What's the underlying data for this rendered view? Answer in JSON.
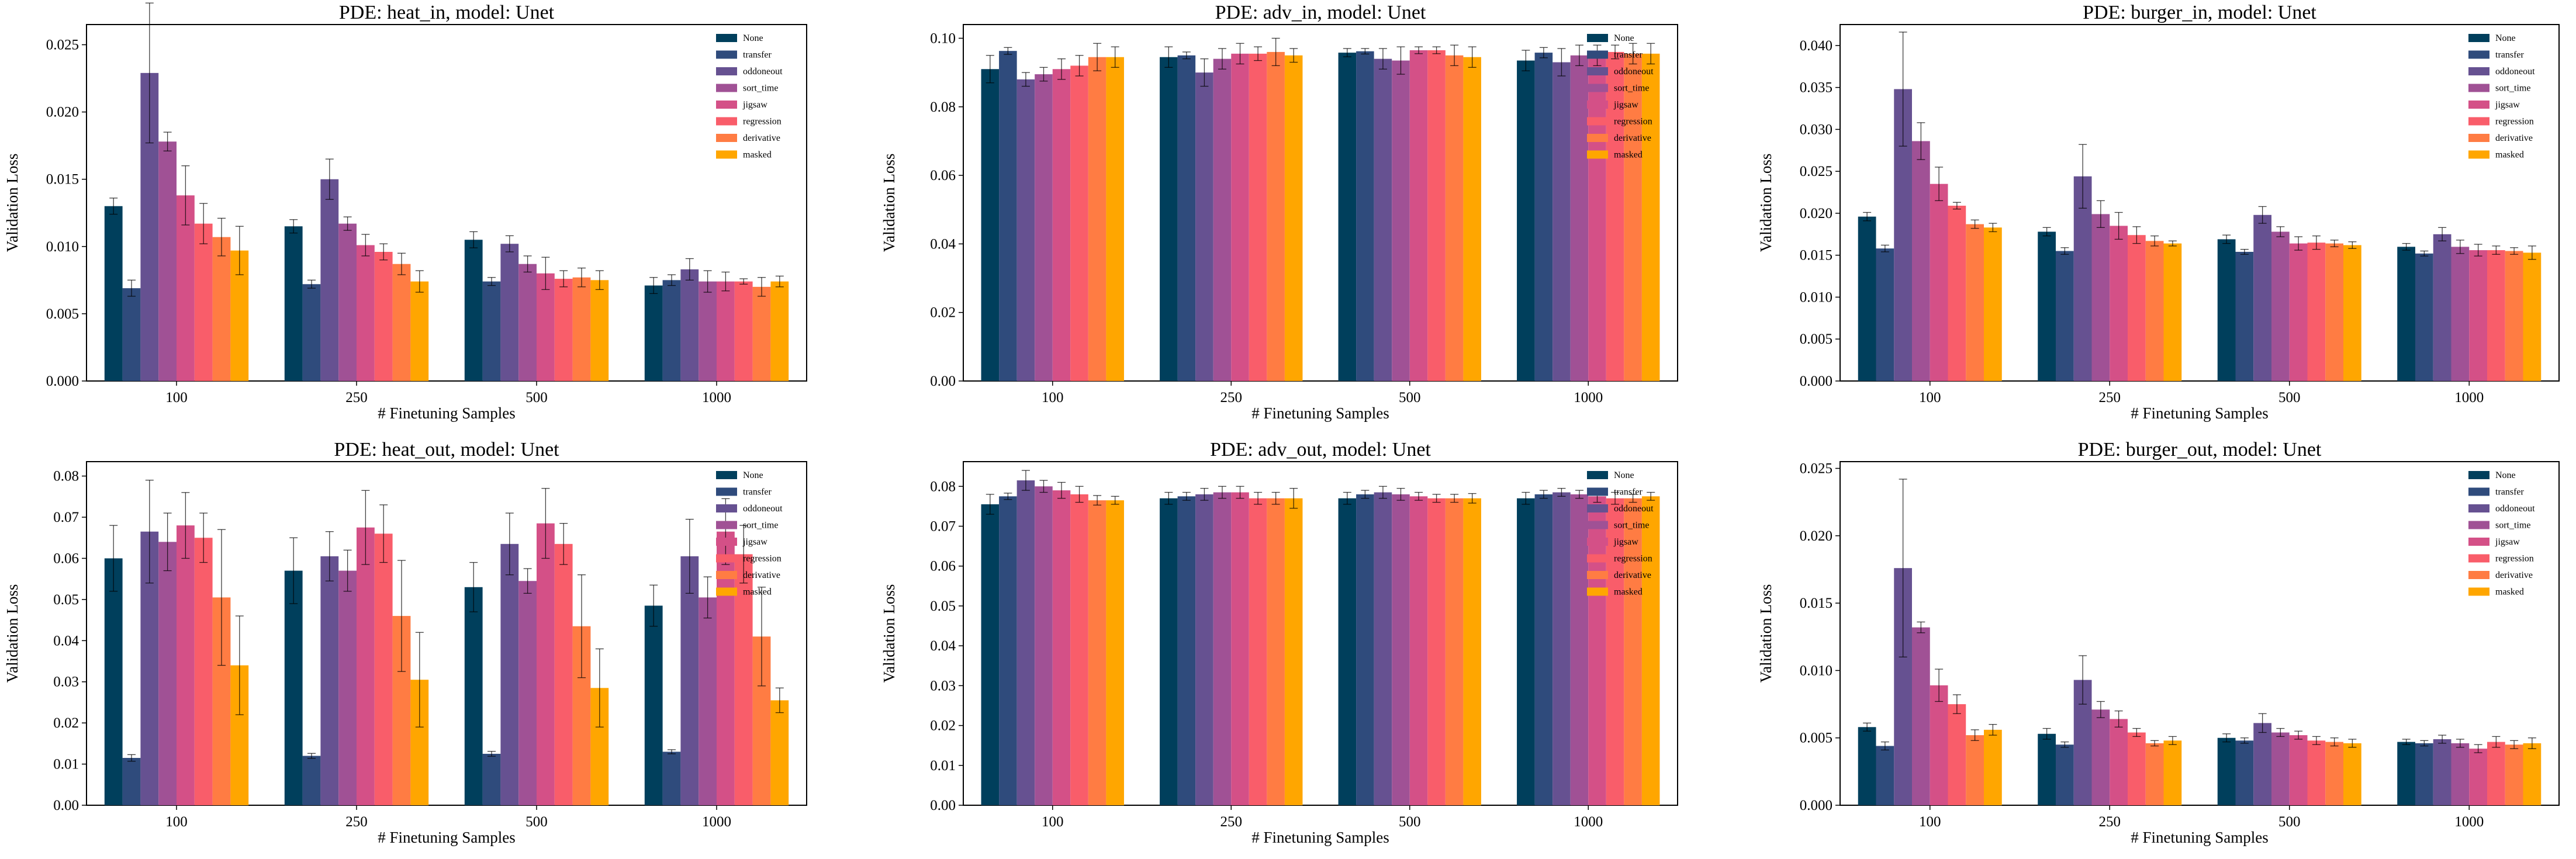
{
  "colors": {
    "None": "#003f5c",
    "transfer": "#2f4b7c",
    "oddoneout": "#665191",
    "sort_time": "#a05195",
    "jigsaw": "#d45087",
    "regression": "#f95d6a",
    "derivative": "#ff7c43",
    "masked": "#ffa600"
  },
  "chart_data": [
    {
      "type": "bar",
      "title": "PDE: heat_in, model: Unet",
      "xlabel": "# Finetuning Samples",
      "ylabel": "Validation Loss",
      "categories": [
        "100",
        "250",
        "500",
        "1000"
      ],
      "ylim": [
        0,
        0.0265
      ],
      "yticks": [
        "0.000",
        "0.005",
        "0.010",
        "0.015",
        "0.020",
        "0.025"
      ],
      "ytick_values": [
        0,
        0.005,
        0.01,
        0.015,
        0.02,
        0.025
      ],
      "series": [
        {
          "name": "None",
          "values": [
            0.013,
            0.0115,
            0.0105,
            0.0071
          ],
          "errors": [
            0.0006,
            0.0005,
            0.0006,
            0.0006
          ]
        },
        {
          "name": "transfer",
          "values": [
            0.0069,
            0.0072,
            0.0074,
            0.0075
          ],
          "errors": [
            0.0006,
            0.0003,
            0.0003,
            0.0004
          ]
        },
        {
          "name": "oddoneout",
          "values": [
            0.0229,
            0.015,
            0.0102,
            0.0083
          ],
          "errors": [
            0.0052,
            0.0015,
            0.0006,
            0.0008
          ]
        },
        {
          "name": "sort_time",
          "values": [
            0.0178,
            0.0117,
            0.0087,
            0.0074
          ],
          "errors": [
            0.0007,
            0.0005,
            0.0006,
            0.0008
          ]
        },
        {
          "name": "jigsaw",
          "values": [
            0.0138,
            0.0101,
            0.008,
            0.0074
          ],
          "errors": [
            0.0022,
            0.0008,
            0.0012,
            0.0007
          ]
        },
        {
          "name": "regression",
          "values": [
            0.0117,
            0.0096,
            0.0076,
            0.0074
          ],
          "errors": [
            0.0015,
            0.0006,
            0.0006,
            0.0002
          ]
        },
        {
          "name": "derivative",
          "values": [
            0.0107,
            0.0087,
            0.0077,
            0.007
          ],
          "errors": [
            0.0014,
            0.0008,
            0.0007,
            0.0007
          ]
        },
        {
          "name": "masked",
          "values": [
            0.0097,
            0.0074,
            0.0075,
            0.0074
          ],
          "errors": [
            0.0018,
            0.0008,
            0.0007,
            0.0004
          ]
        }
      ]
    },
    {
      "type": "bar",
      "title": "PDE: adv_in, model: Unet",
      "xlabel": "# Finetuning Samples",
      "ylabel": "Validation Loss",
      "categories": [
        "100",
        "250",
        "500",
        "1000"
      ],
      "ylim": [
        0,
        0.104
      ],
      "yticks": [
        "0.00",
        "0.02",
        "0.04",
        "0.06",
        "0.08",
        "0.10"
      ],
      "ytick_values": [
        0,
        0.02,
        0.04,
        0.06,
        0.08,
        0.1
      ],
      "series": [
        {
          "name": "None",
          "values": [
            0.091,
            0.0945,
            0.0958,
            0.0935
          ],
          "errors": [
            0.004,
            0.003,
            0.0012,
            0.003
          ]
        },
        {
          "name": "transfer",
          "values": [
            0.0963,
            0.095,
            0.0962,
            0.0958
          ],
          "errors": [
            0.001,
            0.001,
            0.0008,
            0.0015
          ]
        },
        {
          "name": "oddoneout",
          "values": [
            0.088,
            0.09,
            0.094,
            0.093
          ],
          "errors": [
            0.002,
            0.004,
            0.003,
            0.004
          ]
        },
        {
          "name": "sort_time",
          "values": [
            0.0895,
            0.094,
            0.0935,
            0.095
          ],
          "errors": [
            0.002,
            0.003,
            0.004,
            0.003
          ]
        },
        {
          "name": "jigsaw",
          "values": [
            0.091,
            0.0955,
            0.0965,
            0.095
          ],
          "errors": [
            0.003,
            0.003,
            0.001,
            0.003
          ]
        },
        {
          "name": "regression",
          "values": [
            0.092,
            0.0955,
            0.0965,
            0.096
          ],
          "errors": [
            0.003,
            0.002,
            0.001,
            0.002
          ]
        },
        {
          "name": "derivative",
          "values": [
            0.0945,
            0.096,
            0.095,
            0.0955
          ],
          "errors": [
            0.004,
            0.004,
            0.003,
            0.003
          ]
        },
        {
          "name": "masked",
          "values": [
            0.0945,
            0.095,
            0.0945,
            0.0955
          ],
          "errors": [
            0.003,
            0.002,
            0.003,
            0.003
          ]
        }
      ]
    },
    {
      "type": "bar",
      "title": "PDE: burger_in, model: Unet",
      "xlabel": "# Finetuning Samples",
      "ylabel": "Validation Loss",
      "categories": [
        "100",
        "250",
        "500",
        "1000"
      ],
      "ylim": [
        0,
        0.0425
      ],
      "yticks": [
        "0.000",
        "0.005",
        "0.010",
        "0.015",
        "0.020",
        "0.025",
        "0.030",
        "0.035",
        "0.040"
      ],
      "ytick_values": [
        0,
        0.005,
        0.01,
        0.015,
        0.02,
        0.025,
        0.03,
        0.035,
        0.04
      ],
      "series": [
        {
          "name": "None",
          "values": [
            0.0196,
            0.0178,
            0.0169,
            0.016
          ],
          "errors": [
            0.0005,
            0.0005,
            0.0005,
            0.0004
          ]
        },
        {
          "name": "transfer",
          "values": [
            0.0158,
            0.0155,
            0.0154,
            0.0152
          ],
          "errors": [
            0.0004,
            0.0004,
            0.0003,
            0.0003
          ]
        },
        {
          "name": "oddoneout",
          "values": [
            0.0348,
            0.0244,
            0.0198,
            0.0175
          ],
          "errors": [
            0.0068,
            0.0038,
            0.001,
            0.0008
          ]
        },
        {
          "name": "sort_time",
          "values": [
            0.0286,
            0.0199,
            0.0178,
            0.016
          ],
          "errors": [
            0.0022,
            0.0016,
            0.0006,
            0.0008
          ]
        },
        {
          "name": "jigsaw",
          "values": [
            0.0235,
            0.0185,
            0.0164,
            0.0156
          ],
          "errors": [
            0.002,
            0.0016,
            0.0008,
            0.0007
          ]
        },
        {
          "name": "regression",
          "values": [
            0.0209,
            0.0174,
            0.0165,
            0.0156
          ],
          "errors": [
            0.0004,
            0.001,
            0.0008,
            0.0005
          ]
        },
        {
          "name": "derivative",
          "values": [
            0.0187,
            0.0167,
            0.0164,
            0.0155
          ],
          "errors": [
            0.0005,
            0.0006,
            0.0004,
            0.0004
          ]
        },
        {
          "name": "masked",
          "values": [
            0.0183,
            0.0164,
            0.0162,
            0.0153
          ],
          "errors": [
            0.0005,
            0.0003,
            0.0004,
            0.0008
          ]
        }
      ]
    },
    {
      "type": "bar",
      "title": "PDE: heat_out, model: Unet",
      "xlabel": "# Finetuning Samples",
      "ylabel": "Validation Loss",
      "categories": [
        "100",
        "250",
        "500",
        "1000"
      ],
      "ylim": [
        0,
        0.0835
      ],
      "yticks": [
        "0.00",
        "0.01",
        "0.02",
        "0.03",
        "0.04",
        "0.05",
        "0.06",
        "0.07",
        "0.08"
      ],
      "ytick_values": [
        0,
        0.01,
        0.02,
        0.03,
        0.04,
        0.05,
        0.06,
        0.07,
        0.08
      ],
      "series": [
        {
          "name": "None",
          "values": [
            0.06,
            0.057,
            0.053,
            0.0485
          ],
          "errors": [
            0.008,
            0.008,
            0.006,
            0.005
          ]
        },
        {
          "name": "transfer",
          "values": [
            0.0115,
            0.012,
            0.0125,
            0.013
          ],
          "errors": [
            0.0008,
            0.0006,
            0.0006,
            0.0005
          ]
        },
        {
          "name": "oddoneout",
          "values": [
            0.0665,
            0.0605,
            0.0635,
            0.0605
          ],
          "errors": [
            0.0125,
            0.006,
            0.0075,
            0.009
          ]
        },
        {
          "name": "sort_time",
          "values": [
            0.064,
            0.057,
            0.0545,
            0.0505
          ],
          "errors": [
            0.007,
            0.005,
            0.003,
            0.005
          ]
        },
        {
          "name": "jigsaw",
          "values": [
            0.068,
            0.0675,
            0.0685,
            0.0665
          ],
          "errors": [
            0.008,
            0.009,
            0.0085,
            0.008
          ]
        },
        {
          "name": "regression",
          "values": [
            0.065,
            0.066,
            0.0635,
            0.061
          ],
          "errors": [
            0.006,
            0.007,
            0.005,
            0.007
          ]
        },
        {
          "name": "derivative",
          "values": [
            0.0505,
            0.046,
            0.0435,
            0.041
          ],
          "errors": [
            0.0165,
            0.0135,
            0.0125,
            0.012
          ]
        },
        {
          "name": "masked",
          "values": [
            0.034,
            0.0305,
            0.0285,
            0.0255
          ],
          "errors": [
            0.012,
            0.0115,
            0.0095,
            0.003
          ]
        }
      ]
    },
    {
      "type": "bar",
      "title": "PDE: adv_out, model: Unet",
      "xlabel": "# Finetuning Samples",
      "ylabel": "Validation Loss",
      "categories": [
        "100",
        "250",
        "500",
        "1000"
      ],
      "ylim": [
        0,
        0.0862
      ],
      "yticks": [
        "0.00",
        "0.01",
        "0.02",
        "0.03",
        "0.04",
        "0.05",
        "0.06",
        "0.07",
        "0.08"
      ],
      "ytick_values": [
        0,
        0.01,
        0.02,
        0.03,
        0.04,
        0.05,
        0.06,
        0.07,
        0.08
      ],
      "series": [
        {
          "name": "None",
          "values": [
            0.0755,
            0.077,
            0.077,
            0.077
          ],
          "errors": [
            0.0025,
            0.0015,
            0.0015,
            0.0015
          ]
        },
        {
          "name": "transfer",
          "values": [
            0.0775,
            0.0775,
            0.078,
            0.078
          ],
          "errors": [
            0.0008,
            0.001,
            0.001,
            0.001
          ]
        },
        {
          "name": "oddoneout",
          "values": [
            0.0815,
            0.078,
            0.0785,
            0.0785
          ],
          "errors": [
            0.0025,
            0.0015,
            0.0015,
            0.001
          ]
        },
        {
          "name": "sort_time",
          "values": [
            0.08,
            0.0785,
            0.078,
            0.078
          ],
          "errors": [
            0.0015,
            0.0015,
            0.0015,
            0.001
          ]
        },
        {
          "name": "jigsaw",
          "values": [
            0.079,
            0.0785,
            0.0775,
            0.0775
          ],
          "errors": [
            0.002,
            0.0015,
            0.001,
            0.0015
          ]
        },
        {
          "name": "regression",
          "values": [
            0.078,
            0.077,
            0.077,
            0.077
          ],
          "errors": [
            0.002,
            0.0015,
            0.001,
            0.0015
          ]
        },
        {
          "name": "derivative",
          "values": [
            0.0765,
            0.077,
            0.077,
            0.077
          ],
          "errors": [
            0.0012,
            0.0015,
            0.001,
            0.001
          ]
        },
        {
          "name": "masked",
          "values": [
            0.0765,
            0.077,
            0.077,
            0.0775
          ],
          "errors": [
            0.001,
            0.0025,
            0.0012,
            0.001
          ]
        }
      ]
    },
    {
      "type": "bar",
      "title": "PDE: burger_out, model: Unet",
      "xlabel": "# Finetuning Samples",
      "ylabel": "Validation Loss",
      "categories": [
        "100",
        "250",
        "500",
        "1000"
      ],
      "ylim": [
        0,
        0.0255
      ],
      "yticks": [
        "0.000",
        "0.005",
        "0.010",
        "0.015",
        "0.020",
        "0.025"
      ],
      "ytick_values": [
        0,
        0.005,
        0.01,
        0.015,
        0.02,
        0.025
      ],
      "series": [
        {
          "name": "None",
          "values": [
            0.0058,
            0.0053,
            0.005,
            0.0047
          ],
          "errors": [
            0.0003,
            0.0004,
            0.0003,
            0.0002
          ]
        },
        {
          "name": "transfer",
          "values": [
            0.0044,
            0.0045,
            0.0048,
            0.0046
          ],
          "errors": [
            0.0003,
            0.0002,
            0.0002,
            0.0002
          ]
        },
        {
          "name": "oddoneout",
          "values": [
            0.0176,
            0.0093,
            0.0061,
            0.0049
          ],
          "errors": [
            0.0066,
            0.0018,
            0.0007,
            0.0003
          ]
        },
        {
          "name": "sort_time",
          "values": [
            0.0132,
            0.0071,
            0.0054,
            0.0046
          ],
          "errors": [
            0.0004,
            0.0006,
            0.0003,
            0.0003
          ]
        },
        {
          "name": "jigsaw",
          "values": [
            0.0089,
            0.0064,
            0.0052,
            0.0042
          ],
          "errors": [
            0.0012,
            0.0006,
            0.0003,
            0.0003
          ]
        },
        {
          "name": "regression",
          "values": [
            0.0075,
            0.0054,
            0.0048,
            0.0047
          ],
          "errors": [
            0.0007,
            0.0003,
            0.0003,
            0.0004
          ]
        },
        {
          "name": "derivative",
          "values": [
            0.0052,
            0.0046,
            0.0047,
            0.0045
          ],
          "errors": [
            0.0004,
            0.0002,
            0.0003,
            0.0003
          ]
        },
        {
          "name": "masked",
          "values": [
            0.0056,
            0.0048,
            0.0046,
            0.0046
          ],
          "errors": [
            0.0004,
            0.0003,
            0.0003,
            0.0004
          ]
        }
      ]
    }
  ]
}
